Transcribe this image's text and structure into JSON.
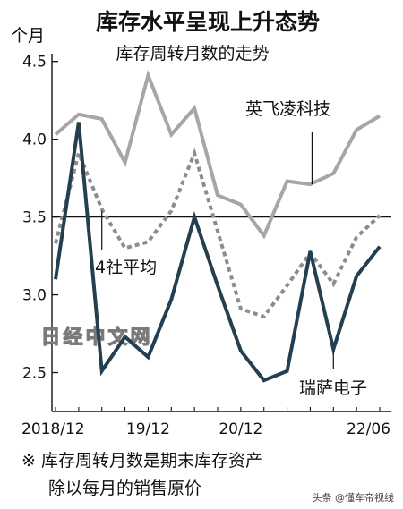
{
  "chart_data": {
    "type": "line",
    "title": "库存水平呈现上升态势",
    "subtitle": "库存周转月数的走势",
    "ylabel": "个月",
    "ylim": [
      2.25,
      4.55
    ],
    "yticks": [
      2.5,
      3.0,
      3.5,
      4.0,
      4.5
    ],
    "ytick_labels": [
      "2.5",
      "3.0",
      "3.5",
      "4.0",
      "4.5"
    ],
    "xticks": [
      {
        "label": "2018/12",
        "index": 0
      },
      {
        "label": "19/12",
        "index": 4
      },
      {
        "label": "20/12",
        "index": 8
      },
      {
        "label": "22/06",
        "index": 14
      }
    ],
    "reference_line": 3.5,
    "n_points": 15,
    "series": [
      {
        "name": "英飞凌科技",
        "color": "#a6a6a6",
        "dash": "none",
        "values": [
          4.03,
          4.16,
          4.13,
          3.85,
          4.41,
          4.03,
          4.2,
          3.64,
          3.58,
          3.38,
          3.73,
          3.71,
          3.78,
          4.06,
          4.15
        ]
      },
      {
        "name": "4社平均",
        "color": "#8c8c8c",
        "dash": "5,4",
        "values": [
          3.33,
          3.91,
          3.55,
          3.3,
          3.34,
          3.54,
          3.91,
          3.41,
          2.91,
          2.86,
          3.06,
          3.27,
          3.07,
          3.37,
          3.51
        ]
      },
      {
        "name": "瑞萨电子",
        "color": "#243f4f",
        "dash": "none",
        "values": [
          3.1,
          4.11,
          2.51,
          2.73,
          2.6,
          2.97,
          3.5,
          3.06,
          2.64,
          2.45,
          2.51,
          3.28,
          2.65,
          3.12,
          3.31
        ]
      }
    ],
    "annotations": [
      {
        "text": "英飞凌科技",
        "series": 0,
        "point": 11
      },
      {
        "text": "4社平均",
        "series": 1,
        "point": 2
      },
      {
        "text": "瑞萨电子",
        "series": 2,
        "point": 12
      }
    ],
    "footnote": [
      "※ 库存周转月数是期末库存资产",
      "除以每月的销售原价"
    ]
  },
  "watermarks": {
    "center": "日经中文网",
    "credit": "头条 @懂车帝视线"
  }
}
